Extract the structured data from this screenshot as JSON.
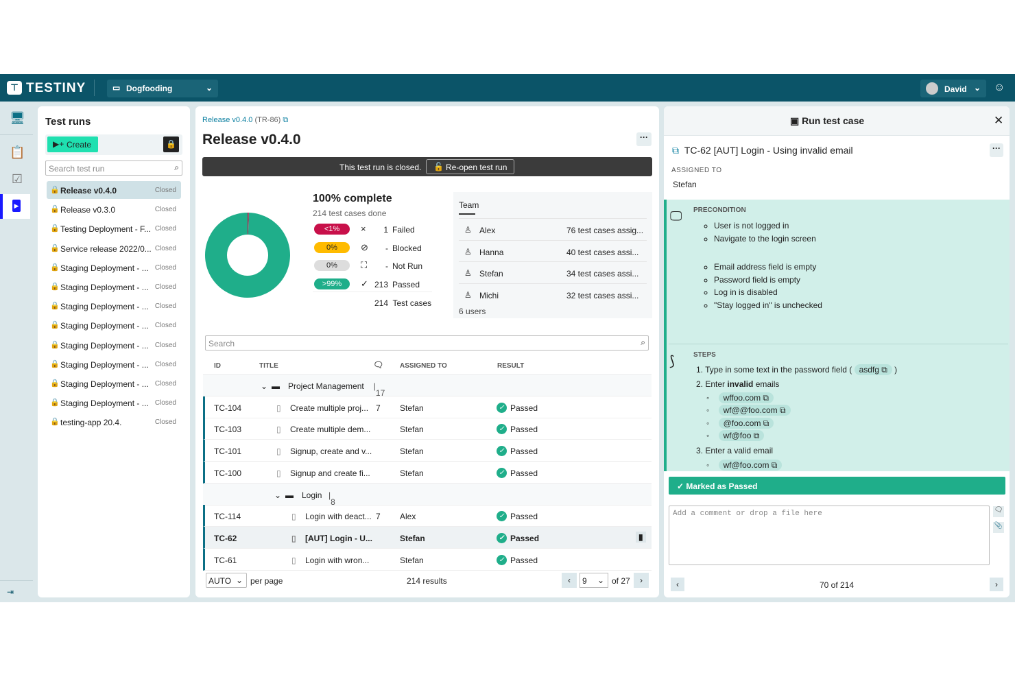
{
  "header": {
    "brand": "TESTINY",
    "project": "Dogfooding",
    "user": "David"
  },
  "testruns": {
    "title": "Test runs",
    "create": "Create",
    "search_placeholder": "Search test run",
    "items": [
      {
        "name": "Release v0.4.0",
        "status": "Closed"
      },
      {
        "name": "Release v0.3.0",
        "status": "Closed"
      },
      {
        "name": "Testing Deployment - F...",
        "status": "Closed"
      },
      {
        "name": "Service release 2022/0...",
        "status": "Closed"
      },
      {
        "name": "Staging Deployment - ...",
        "status": "Closed"
      },
      {
        "name": "Staging Deployment - ...",
        "status": "Closed"
      },
      {
        "name": "Staging Deployment - ...",
        "status": "Closed"
      },
      {
        "name": "Staging Deployment - ...",
        "status": "Closed"
      },
      {
        "name": "Staging Deployment - ...",
        "status": "Closed"
      },
      {
        "name": "Staging Deployment - ...",
        "status": "Closed"
      },
      {
        "name": "Staging Deployment - ...",
        "status": "Closed"
      },
      {
        "name": "Staging Deployment - ...",
        "status": "Closed"
      },
      {
        "name": "testing-app 20.4.",
        "status": "Closed"
      }
    ]
  },
  "run": {
    "breadcrumb": "Release v0.4.0",
    "breadcrumb_id": "(TR-86)",
    "title": "Release v0.4.0",
    "closed_msg": "This test run is closed.",
    "reopen": "Re-open test run",
    "complete": "100% complete",
    "done": "214 test cases done",
    "stats": [
      {
        "pct": "<1%",
        "icon": "×",
        "count": "1",
        "label": "Failed",
        "color": "#c8104a",
        "fg": "#fff"
      },
      {
        "pct": "0%",
        "icon": "⊘",
        "count": "-",
        "label": "Blocked",
        "color": "#ffbb00",
        "fg": "#222"
      },
      {
        "pct": "0%",
        "icon": "⛶",
        "count": "-",
        "label": "Not Run",
        "color": "#ddd",
        "fg": "#222"
      },
      {
        "pct": ">99%",
        "icon": "✓",
        "count": "213",
        "label": "Passed",
        "color": "#1fae8a",
        "fg": "#fff"
      }
    ],
    "total_count": "214",
    "total_label": "Test cases",
    "chart_data": {
      "type": "pie",
      "values": [
        1,
        213
      ],
      "labels": [
        "Failed",
        "Passed"
      ],
      "colors": [
        "#c8104a",
        "#1fae8a"
      ]
    },
    "team_title": "Team",
    "team": [
      {
        "name": "Alex",
        "assigned": "76 test cases assig..."
      },
      {
        "name": "Hanna",
        "assigned": "40 test cases assi..."
      },
      {
        "name": "Stefan",
        "assigned": "34 test cases assi..."
      },
      {
        "name": "Michi",
        "assigned": "32 test cases assi..."
      }
    ],
    "users": "6 users",
    "search_placeholder": "Search",
    "cols": {
      "id": "ID",
      "title": "TITLE",
      "assigned": "ASSIGNED TO",
      "result": "RESULT"
    },
    "rows": [
      {
        "type": "folder",
        "name": "Project Management",
        "count": "17"
      },
      {
        "id": "TC-104",
        "title": "Create multiple proj...",
        "n": "7",
        "who": "Stefan",
        "res": "Passed"
      },
      {
        "id": "TC-103",
        "title": "Create multiple dem...",
        "n": "",
        "who": "Stefan",
        "res": "Passed"
      },
      {
        "id": "TC-101",
        "title": "Signup, create and v...",
        "n": "",
        "who": "Stefan",
        "res": "Passed"
      },
      {
        "id": "TC-100",
        "title": "Signup and create fi...",
        "n": "",
        "who": "Stefan",
        "res": "Passed"
      },
      {
        "type": "folder",
        "name": "Login",
        "count": "8"
      },
      {
        "id": "TC-114",
        "title": "Login with deact...",
        "n": "7",
        "who": "Alex",
        "res": "Passed"
      },
      {
        "id": "TC-62",
        "title": "[AUT] Login - U...",
        "n": "",
        "who": "Stefan",
        "res": "Passed",
        "sel": true
      },
      {
        "id": "TC-61",
        "title": "Login with wron...",
        "n": "",
        "who": "Stefan",
        "res": "Passed"
      }
    ],
    "per_page": "AUTO",
    "per_page_label": "per page",
    "results": "214 results",
    "page": "9",
    "of": "of 27"
  },
  "case": {
    "panel_title": "Run test case",
    "title": "TC-62 [AUT] Login - Using invalid email",
    "assigned_label": "ASSIGNED TO",
    "assigned": "Stefan",
    "pre_label": "PRECONDITION",
    "pre1": [
      "User is not logged in",
      "Navigate to the login screen"
    ],
    "pre2": [
      "Email address field is empty",
      "Password field is empty",
      "Log in is disabled",
      "\"Stay logged in\" is unchecked"
    ],
    "steps_label": "STEPS",
    "step1": "1. Type in some text in the password field (",
    "step1_chip": "asdfg",
    "step2a": "2. Enter ",
    "step2b": "invalid",
    "step2c": " emails",
    "emails": [
      "wffoo.com",
      "wf@@foo.com",
      "@foo.com",
      "wf@foo"
    ],
    "step3": "3. Enter a valid email",
    "valid": "wf@foo.com",
    "marked": "Marked as Passed",
    "comment_placeholder": "Add a comment or drop a file here",
    "pos": "70 of 214"
  }
}
